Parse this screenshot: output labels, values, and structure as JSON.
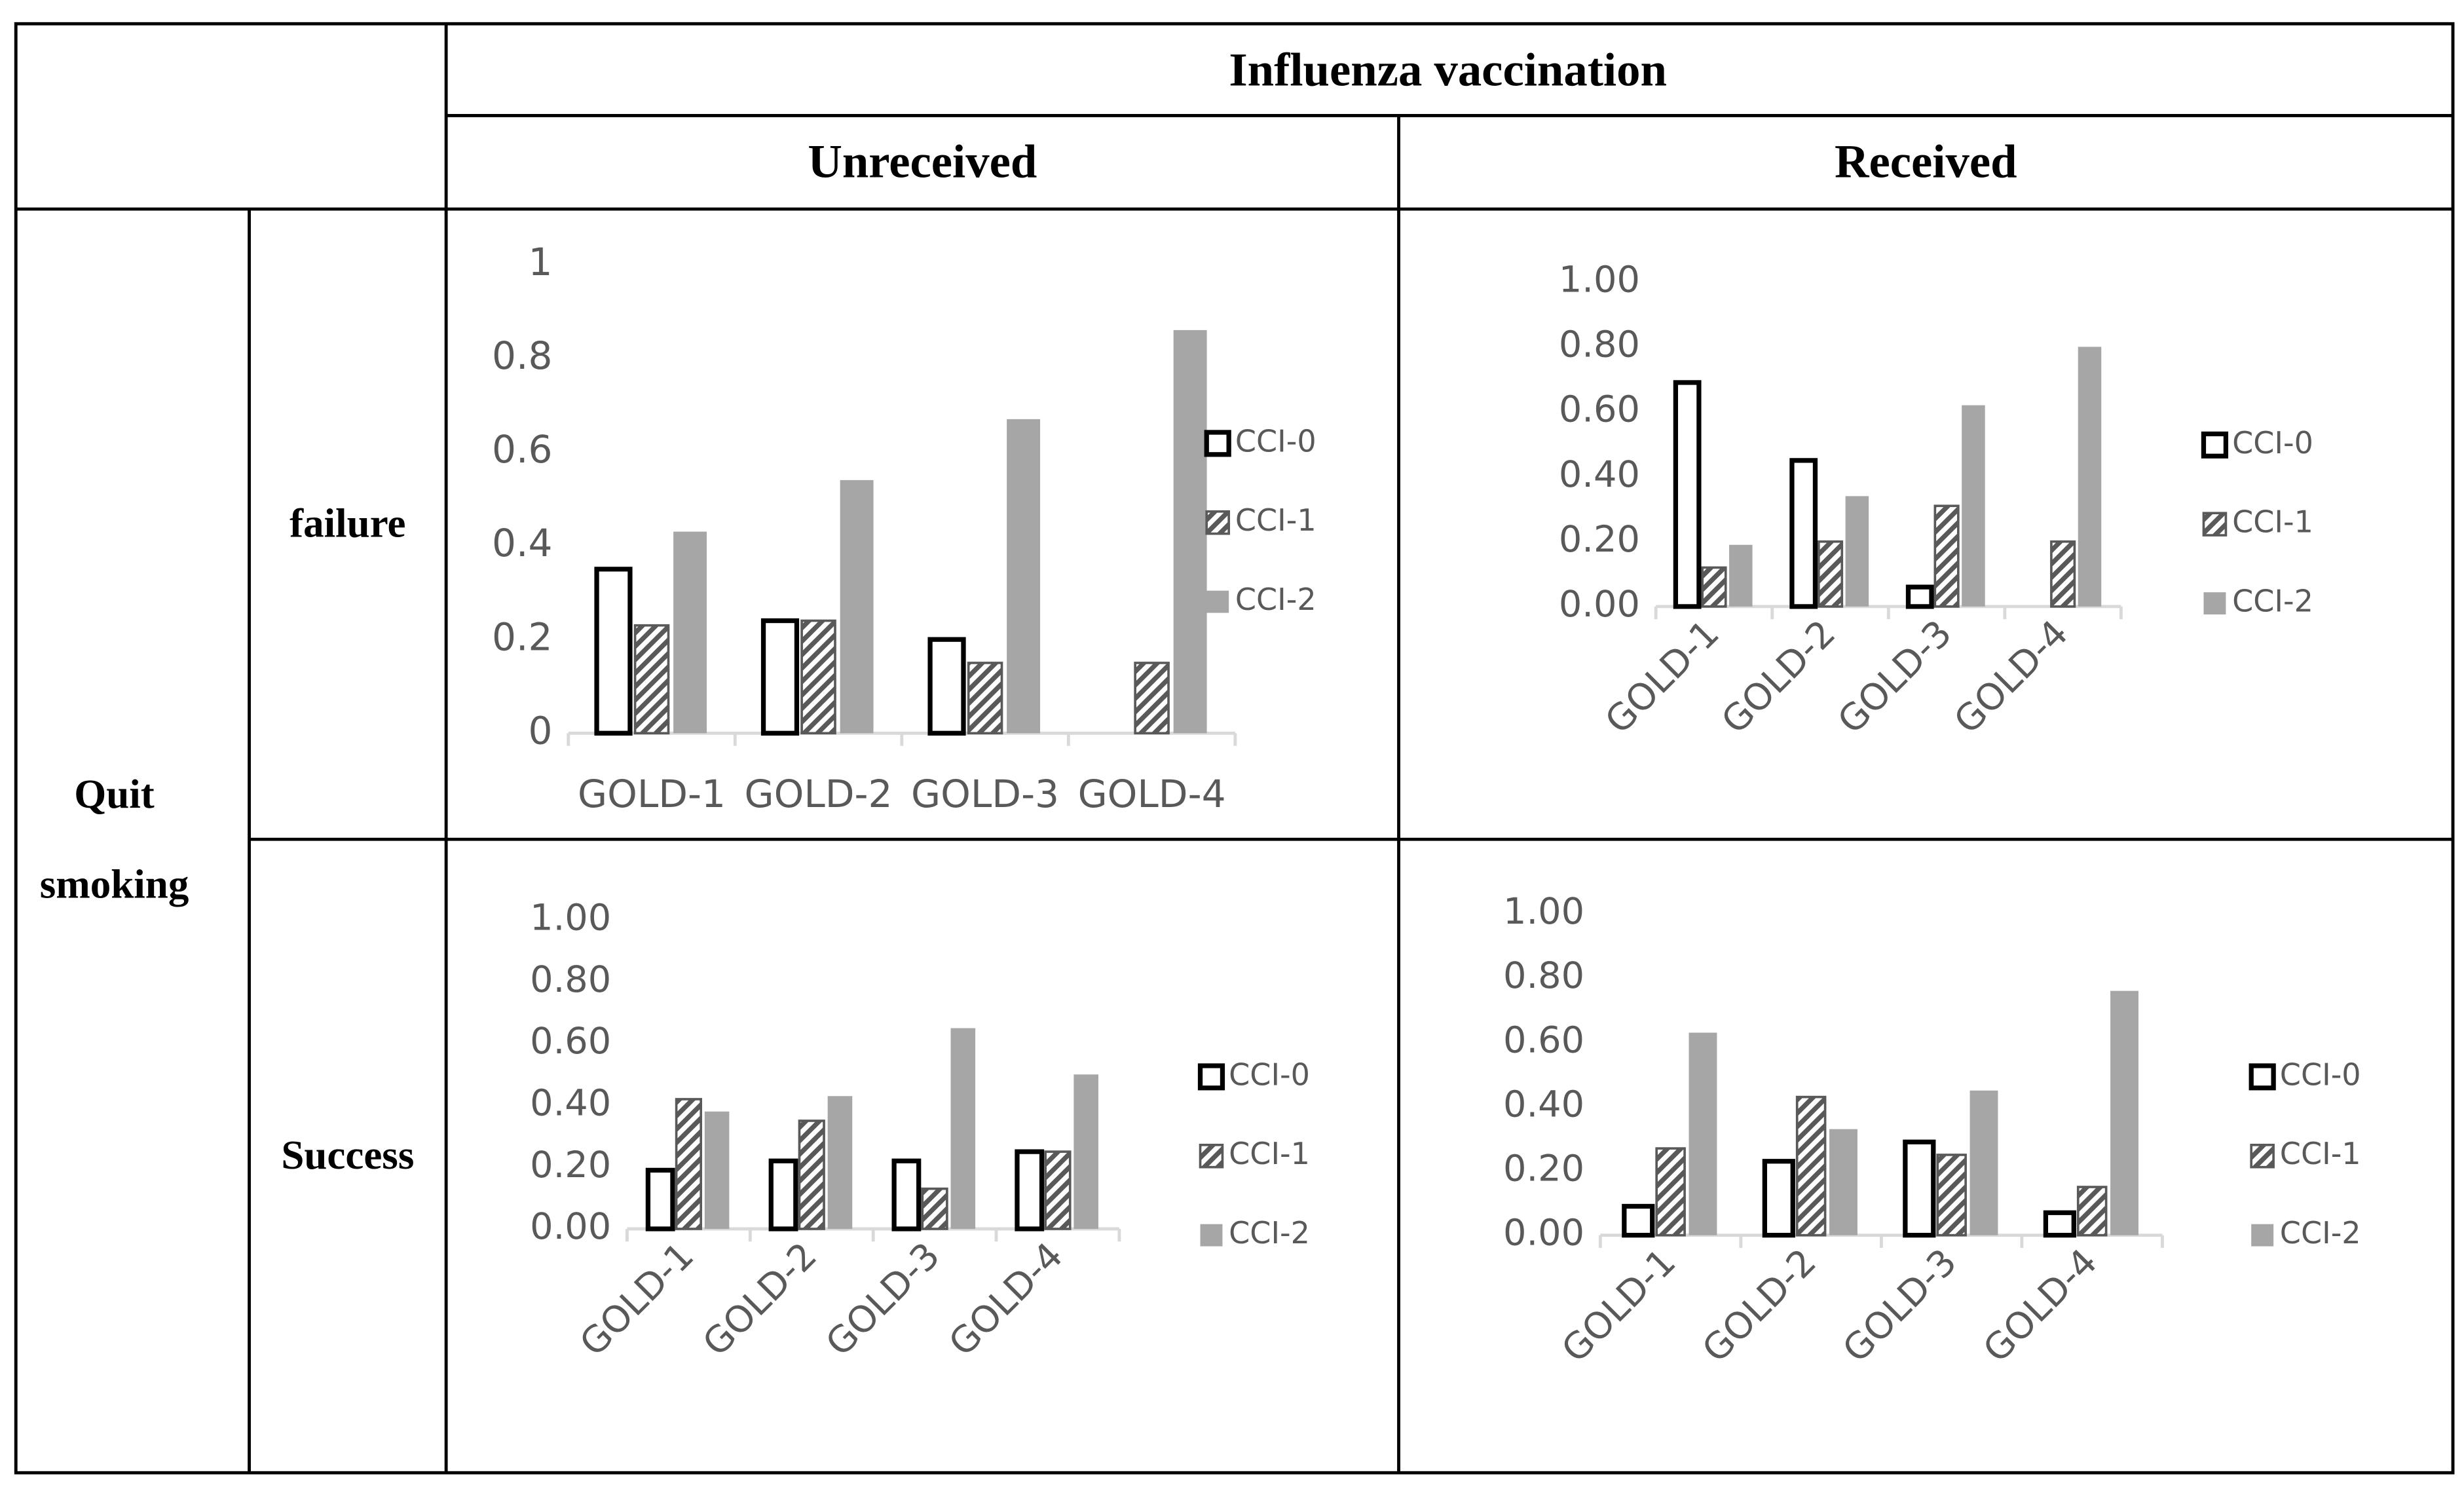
{
  "table": {
    "title": "Influenza vaccination",
    "columns": [
      "Unreceived",
      "Received"
    ],
    "row_group": [
      "Quit",
      "smoking"
    ],
    "rows": [
      "failure",
      "Success"
    ]
  },
  "chart_data": [
    {
      "type": "bar",
      "categories": [
        "GOLD-1",
        "GOLD-2",
        "GOLD-3",
        "GOLD-4"
      ],
      "ylim": [
        0,
        1
      ],
      "yticks": [
        0,
        0.2,
        0.4,
        0.6,
        0.8,
        1
      ],
      "series": [
        {
          "name": "CCI-0",
          "color": "#000000",
          "style": "outline",
          "values": [
            0.35,
            0.24,
            0.2,
            0
          ]
        },
        {
          "name": "CCI-1",
          "color": "#595959",
          "style": "hatched",
          "values": [
            0.23,
            0.24,
            0.15,
            0.15
          ]
        },
        {
          "name": "CCI-2",
          "color": "#a6a6a6",
          "style": "solid",
          "values": [
            0.43,
            0.54,
            0.67,
            0.86
          ]
        }
      ]
    },
    {
      "type": "bar",
      "categories": [
        "GOLD-1",
        "GOLD-2",
        "GOLD-3",
        "GOLD-4"
      ],
      "ylim": [
        0,
        1
      ],
      "yticks": [
        {
          "value": 0,
          "label": "0.00"
        },
        {
          "value": 0.2,
          "label": "0.20"
        },
        {
          "value": 0.4,
          "label": "0.40"
        },
        {
          "value": 0.6,
          "label": "0.60"
        },
        {
          "value": 0.8,
          "label": "0.80"
        },
        {
          "value": 1,
          "label": "1.00"
        }
      ],
      "series": [
        {
          "name": "CCI-0",
          "color": "#000000",
          "style": "outline",
          "values": [
            0.69,
            0.45,
            0.06,
            0
          ]
        },
        {
          "name": "CCI-1",
          "color": "#595959",
          "style": "hatched",
          "values": [
            0.12,
            0.2,
            0.31,
            0.2
          ]
        },
        {
          "name": "CCI-2",
          "color": "#a6a6a6",
          "style": "solid",
          "values": [
            0.19,
            0.34,
            0.62,
            0.8
          ]
        }
      ]
    },
    {
      "type": "bar",
      "categories": [
        "GOLD-1",
        "GOLD-2",
        "GOLD-3",
        "GOLD-4"
      ],
      "ylim": [
        0,
        1
      ],
      "yticks": [
        {
          "value": 0,
          "label": "0.00"
        },
        {
          "value": 0.2,
          "label": "0.20"
        },
        {
          "value": 0.4,
          "label": "0.40"
        },
        {
          "value": 0.6,
          "label": "0.60"
        },
        {
          "value": 0.8,
          "label": "0.80"
        },
        {
          "value": 1,
          "label": "1.00"
        }
      ],
      "series": [
        {
          "name": "CCI-0",
          "color": "#000000",
          "style": "outline",
          "values": [
            0.19,
            0.22,
            0.22,
            0.25
          ]
        },
        {
          "name": "CCI-1",
          "color": "#595959",
          "style": "hatched",
          "values": [
            0.42,
            0.35,
            0.13,
            0.25
          ]
        },
        {
          "name": "CCI-2",
          "color": "#a6a6a6",
          "style": "solid",
          "values": [
            0.38,
            0.43,
            0.65,
            0.5
          ]
        }
      ]
    },
    {
      "type": "bar",
      "categories": [
        "GOLD-1",
        "GOLD-2",
        "GOLD-3",
        "GOLD-4"
      ],
      "ylim": [
        0,
        1
      ],
      "yticks": [
        {
          "value": 0,
          "label": "0.00"
        },
        {
          "value": 0.2,
          "label": "0.20"
        },
        {
          "value": 0.4,
          "label": "0.40"
        },
        {
          "value": 0.6,
          "label": "0.60"
        },
        {
          "value": 0.8,
          "label": "0.80"
        },
        {
          "value": 1,
          "label": "1.00"
        }
      ],
      "series": [
        {
          "name": "CCI-0",
          "color": "#000000",
          "style": "outline",
          "values": [
            0.09,
            0.23,
            0.29,
            0.07
          ]
        },
        {
          "name": "CCI-1",
          "color": "#595959",
          "style": "hatched",
          "values": [
            0.27,
            0.43,
            0.25,
            0.15
          ]
        },
        {
          "name": "CCI-2",
          "color": "#a6a6a6",
          "style": "solid",
          "values": [
            0.63,
            0.33,
            0.45,
            0.76
          ]
        }
      ]
    }
  ]
}
